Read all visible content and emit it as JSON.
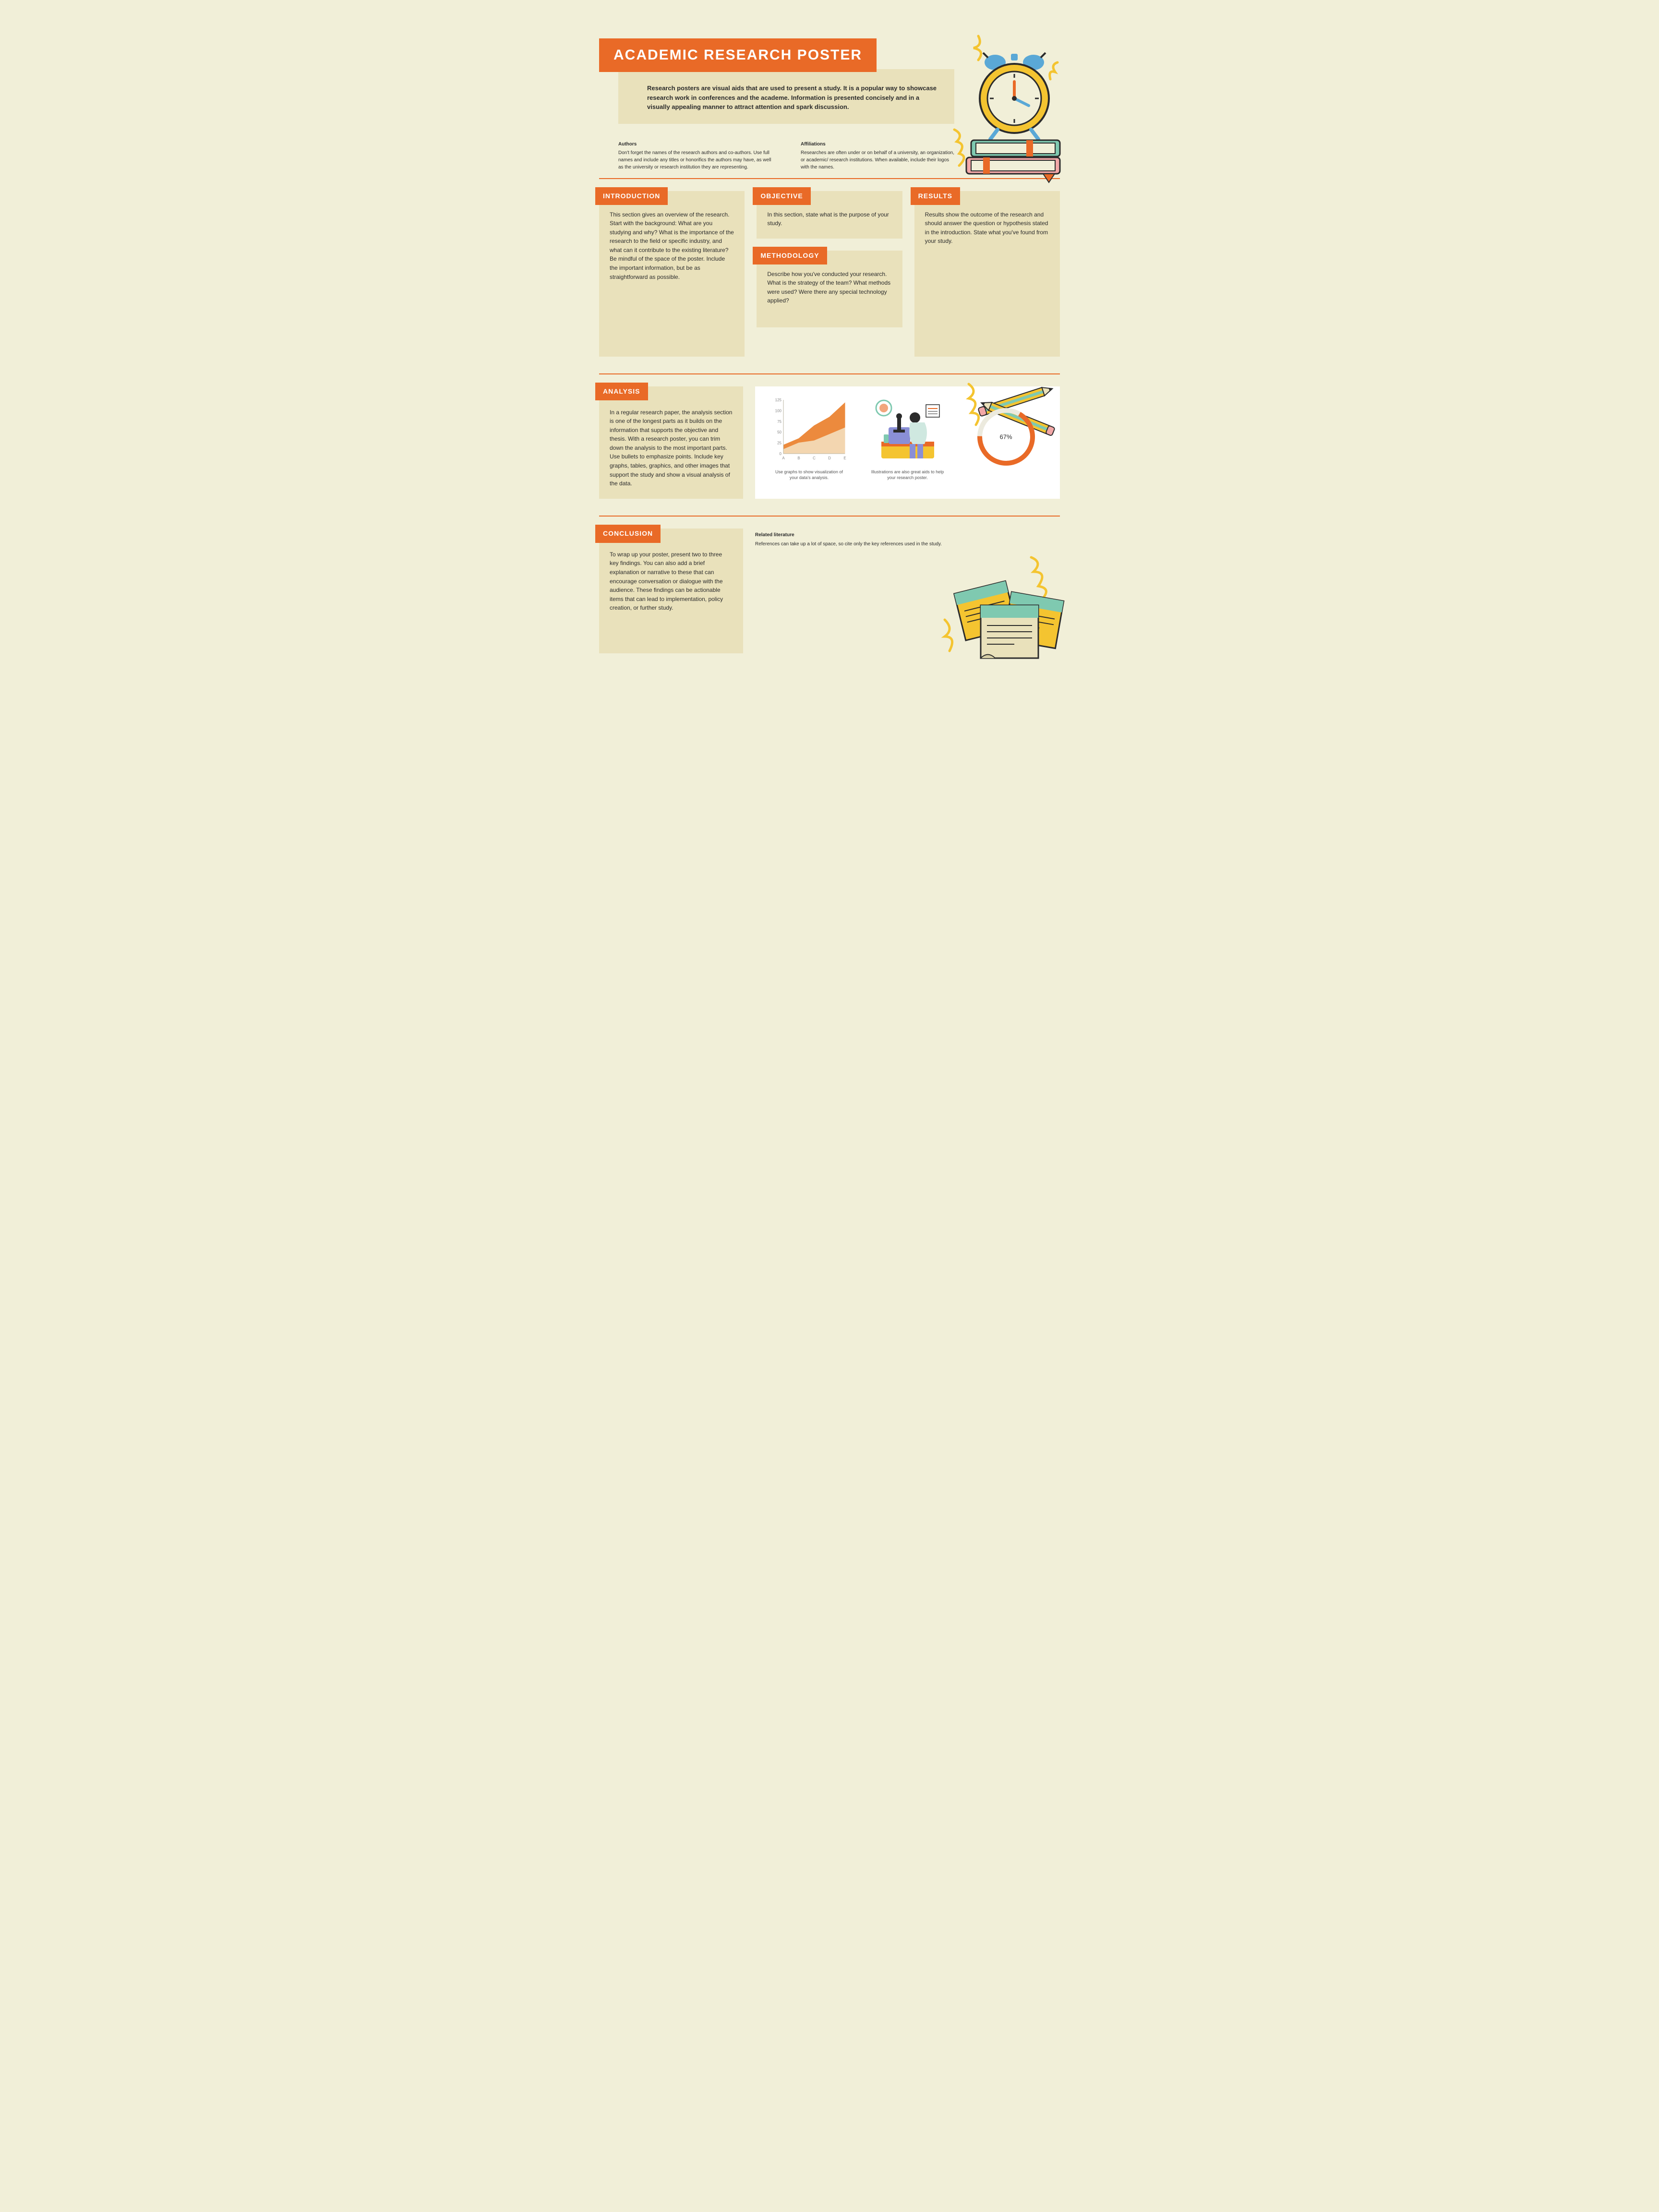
{
  "colors": {
    "page_bg": "#f1efd8",
    "card_bg": "#e9e1bb",
    "accent": "#e96a27",
    "white": "#ffffff",
    "text": "#2b2b2b",
    "yellow": "#f4c430",
    "teal": "#7fc9b0",
    "pink": "#f2a7a7",
    "blue": "#5aa8d6",
    "chart_dark": "#ec8a3d",
    "chart_light": "#f3d6b0",
    "donut_track": "#eceade",
    "donut_fill": "#e96a27",
    "axis": "#b8b5a0"
  },
  "typography": {
    "title_fontsize": 30,
    "label_fontsize": 14,
    "body_fontsize": 12,
    "meta_fontsize": 10,
    "caption_fontsize": 9
  },
  "title": "ACADEMIC RESEARCH POSTER",
  "intro": "Research posters are visual aids that are used to present a study. It is a popular way to showcase research work in conferences and the academe. Information is presented concisely and in a visually appealing manner to attract attention and spark discussion.",
  "meta": {
    "authors_h": "Authors",
    "authors_t": "Don't forget the names of the research authors and co-authors. Use full names and include any titles or honorifics the authors may have, as well as the university or research institution they are representing.",
    "affil_h": "Affiliations",
    "affil_t": "Researches are often under or on behalf of a university, an organization, or academic/ research institutions. When available, include their logos with the names."
  },
  "sections": {
    "introduction": {
      "label": "INTRODUCTION",
      "text": "This section gives an overview of the research. Start with the background: What are you studying and why? What is the importance of the research to the field or specific industry, and what can it contribute to the existing literature? Be mindful of the space of the poster. Include the important information, but be as straightforward as possible."
    },
    "objective": {
      "label": "OBJECTIVE",
      "text": "In this section, state what is the purpose of your study."
    },
    "methodology": {
      "label": "METHODOLOGY",
      "text": "Describe how you've conducted your research. What is the strategy of the team? What methods were used? Were there any special technology applied?"
    },
    "results": {
      "label": "RESULTS",
      "text": "Results show the outcome of the research and should answer the question or hypothesis stated in the introduction. State what you've found from your study."
    },
    "analysis": {
      "label": "ANALYSIS",
      "text": "In a regular research paper, the analysis section is one of the longest parts as it builds on the information that supports the objective and thesis. With a research poster, you can trim down the analysis to the most important parts. Use bullets to emphasize points. Include key graphs, tables, graphics, and other images that support the study and show a visual analysis of the data."
    },
    "conclusion": {
      "label": "CONCLUSION",
      "text": "To wrap up your poster, present two to three key findings. You can also add a brief explanation or narrative to these that can encourage conversation or dialogue with the audience. These findings can be actionable items that can lead to implementation, policy creation, or further study."
    }
  },
  "analysis_media": {
    "caption1": "Use graphs to show visualization of your data's analysis.",
    "caption2": "Illustrations are also great aids to help your research poster."
  },
  "related": {
    "h": "Related literature",
    "t": "References can take up a lot of space, so cite only the key references used in the study."
  },
  "area_chart": {
    "type": "area",
    "categories": [
      "A",
      "B",
      "C",
      "D",
      "E"
    ],
    "series_dark": [
      20,
      35,
      65,
      85,
      118
    ],
    "series_light": [
      10,
      25,
      30,
      45,
      60
    ],
    "ylim": [
      0,
      125
    ],
    "yticks": [
      0,
      25,
      50,
      75,
      100,
      125
    ],
    "tick_fontsize": 8,
    "axis_color": "#b8b5a0",
    "colors": [
      "#ec8a3d",
      "#f3d6b0"
    ],
    "background": "#ffffff"
  },
  "donut": {
    "type": "donut",
    "value": 67,
    "label": "67%",
    "fill_color": "#e96a27",
    "track_color": "#eceade",
    "thickness": 10,
    "start_angle_deg": 30
  }
}
